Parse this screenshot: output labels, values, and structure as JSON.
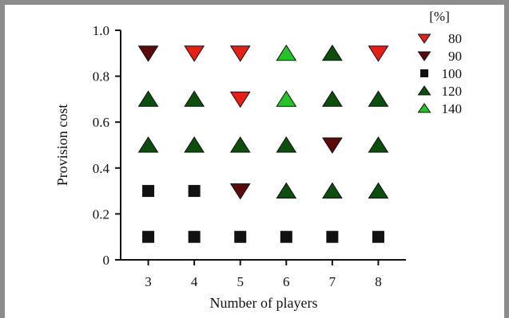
{
  "chart_data": {
    "type": "scatter",
    "xlabel": "Number of players",
    "ylabel": "Provision cost",
    "xlim": [
      2.4,
      8.6
    ],
    "ylim": [
      0,
      1.0
    ],
    "x_ticks": [
      3,
      4,
      5,
      6,
      7,
      8
    ],
    "y_ticks": [
      0,
      0.2,
      0.4,
      0.6,
      0.8,
      1.0
    ],
    "y_tick_labels": [
      "0",
      "0.2",
      "0.4",
      "0.6",
      "0.8",
      "1.0"
    ],
    "legend": {
      "title": "[%]",
      "placement": "right",
      "entries": [
        {
          "label": "80",
          "marker": "triangle-down",
          "color": "#e32119"
        },
        {
          "label": "90",
          "marker": "triangle-down",
          "color": "#5a0a0a"
        },
        {
          "label": "100",
          "marker": "square",
          "color": "#111111"
        },
        {
          "label": "120",
          "marker": "triangle-up",
          "color": "#0d4d0d"
        },
        {
          "label": "140",
          "marker": "triangle-up",
          "color": "#27c227"
        }
      ]
    },
    "points": [
      {
        "x": 3,
        "y": 0.1,
        "category": "100"
      },
      {
        "x": 4,
        "y": 0.1,
        "category": "100"
      },
      {
        "x": 5,
        "y": 0.1,
        "category": "100"
      },
      {
        "x": 6,
        "y": 0.1,
        "category": "100"
      },
      {
        "x": 7,
        "y": 0.1,
        "category": "100"
      },
      {
        "x": 8,
        "y": 0.1,
        "category": "100"
      },
      {
        "x": 3,
        "y": 0.3,
        "category": "100"
      },
      {
        "x": 4,
        "y": 0.3,
        "category": "100"
      },
      {
        "x": 5,
        "y": 0.3,
        "category": "90"
      },
      {
        "x": 6,
        "y": 0.3,
        "category": "120"
      },
      {
        "x": 7,
        "y": 0.3,
        "category": "120"
      },
      {
        "x": 8,
        "y": 0.3,
        "category": "120"
      },
      {
        "x": 3,
        "y": 0.5,
        "category": "120"
      },
      {
        "x": 4,
        "y": 0.5,
        "category": "120"
      },
      {
        "x": 5,
        "y": 0.5,
        "category": "120"
      },
      {
        "x": 6,
        "y": 0.5,
        "category": "120"
      },
      {
        "x": 7,
        "y": 0.5,
        "category": "90"
      },
      {
        "x": 8,
        "y": 0.5,
        "category": "120"
      },
      {
        "x": 3,
        "y": 0.7,
        "category": "120"
      },
      {
        "x": 4,
        "y": 0.7,
        "category": "120"
      },
      {
        "x": 5,
        "y": 0.7,
        "category": "80"
      },
      {
        "x": 6,
        "y": 0.7,
        "category": "140"
      },
      {
        "x": 7,
        "y": 0.7,
        "category": "120"
      },
      {
        "x": 8,
        "y": 0.7,
        "category": "120"
      },
      {
        "x": 3,
        "y": 0.9,
        "category": "90"
      },
      {
        "x": 4,
        "y": 0.9,
        "category": "80"
      },
      {
        "x": 5,
        "y": 0.9,
        "category": "80"
      },
      {
        "x": 6,
        "y": 0.9,
        "category": "140"
      },
      {
        "x": 7,
        "y": 0.9,
        "category": "120"
      },
      {
        "x": 8,
        "y": 0.9,
        "category": "80"
      }
    ],
    "point_colors": {
      "80": "#e32119",
      "90": "#5a0a0a",
      "100": "#111111",
      "120": "#0d4d0d",
      "140": "#27c227"
    },
    "grid": false
  }
}
